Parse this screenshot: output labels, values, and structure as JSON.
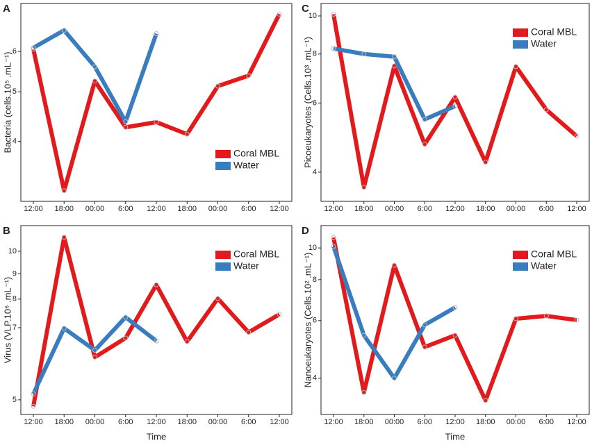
{
  "chart_data": [
    {
      "type": "line",
      "panel": "A",
      "ylabel": "Bacteria (cells.10⁵ .mL⁻¹)",
      "log_y": true,
      "legend": "lower right",
      "categories": [
        "12:00",
        "18:00",
        "00:00",
        "6:00",
        "12:00",
        "18:00",
        "00:00",
        "6:00",
        "12:00"
      ],
      "ylim": [
        3.05,
        7.45
      ],
      "yticks": [
        4,
        5,
        6
      ],
      "series": [
        {
          "name": "Coral MBL",
          "color": "#e31a1c",
          "values": [
            6.06,
            3.2,
            5.25,
            4.26,
            4.36,
            4.13,
            5.13,
            5.38,
            7.1
          ]
        },
        {
          "name": "Water",
          "color": "#3a7dbf",
          "values": [
            6.1,
            6.6,
            5.6,
            4.37,
            6.5,
            null,
            null,
            null,
            null
          ]
        }
      ]
    },
    {
      "type": "line",
      "panel": "B",
      "ylabel": "Virus (VLP.10⁶ .mL⁻¹)",
      "xlabel": "Time",
      "log_y": true,
      "legend": "upper right",
      "categories": [
        "12:00",
        "18:00",
        "00:00",
        "6:00",
        "12:00",
        "18:00",
        "00:00",
        "6:00",
        "12:00"
      ],
      "ylim": [
        4.67,
        11.27
      ],
      "yticks": [
        5,
        7,
        8,
        9,
        10
      ],
      "series": [
        {
          "name": "Coral MBL",
          "color": "#e31a1c",
          "values": [
            4.85,
            10.67,
            6.1,
            6.67,
            8.55,
            6.56,
            8.02,
            6.85,
            7.45
          ]
        },
        {
          "name": "Water",
          "color": "#3a7dbf",
          "values": [
            5.14,
            6.98,
            6.3,
            7.35,
            6.58,
            null,
            null,
            null,
            null
          ]
        }
      ]
    },
    {
      "type": "line",
      "panel": "C",
      "ylabel": "Picoeukaryotes (Cells.10³ .mL⁻¹)",
      "log_y": true,
      "legend": "upper right",
      "categories": [
        "12:00",
        "18:00",
        "00:00",
        "6:00",
        "12:00",
        "18:00",
        "00:00",
        "6:00",
        "12:00"
      ],
      "ylim": [
        3.37,
        10.76
      ],
      "yticks": [
        4,
        6,
        8,
        10
      ],
      "series": [
        {
          "name": "Coral MBL",
          "color": "#e31a1c",
          "values": [
            10.1,
            3.66,
            7.46,
            4.71,
            6.21,
            4.24,
            7.43,
            5.77,
            4.94
          ]
        },
        {
          "name": "Water",
          "color": "#3a7dbf",
          "values": [
            8.26,
            8.0,
            7.87,
            5.45,
            5.89,
            null,
            null,
            null,
            null
          ]
        }
      ]
    },
    {
      "type": "line",
      "panel": "D",
      "ylabel": "Nanoeukaryotes (Cells.10² .mL⁻¹)",
      "xlabel": "Time",
      "log_y": true,
      "legend": "upper right",
      "categories": [
        "12:00",
        "18:00",
        "00:00",
        "6:00",
        "12:00",
        "18:00",
        "00:00",
        "6:00",
        "12:00"
      ],
      "ylim": [
        3.1,
        11.7
      ],
      "yticks": [
        4,
        6,
        8,
        10
      ],
      "series": [
        {
          "name": "Coral MBL",
          "color": "#e31a1c",
          "values": [
            10.76,
            3.62,
            8.85,
            4.98,
            5.41,
            3.42,
            6.08,
            6.2,
            6.02
          ]
        },
        {
          "name": "Water",
          "color": "#3a7dbf",
          "values": [
            10.1,
            5.41,
            4.0,
            5.82,
            6.58,
            null,
            null,
            null,
            null
          ]
        }
      ]
    }
  ]
}
